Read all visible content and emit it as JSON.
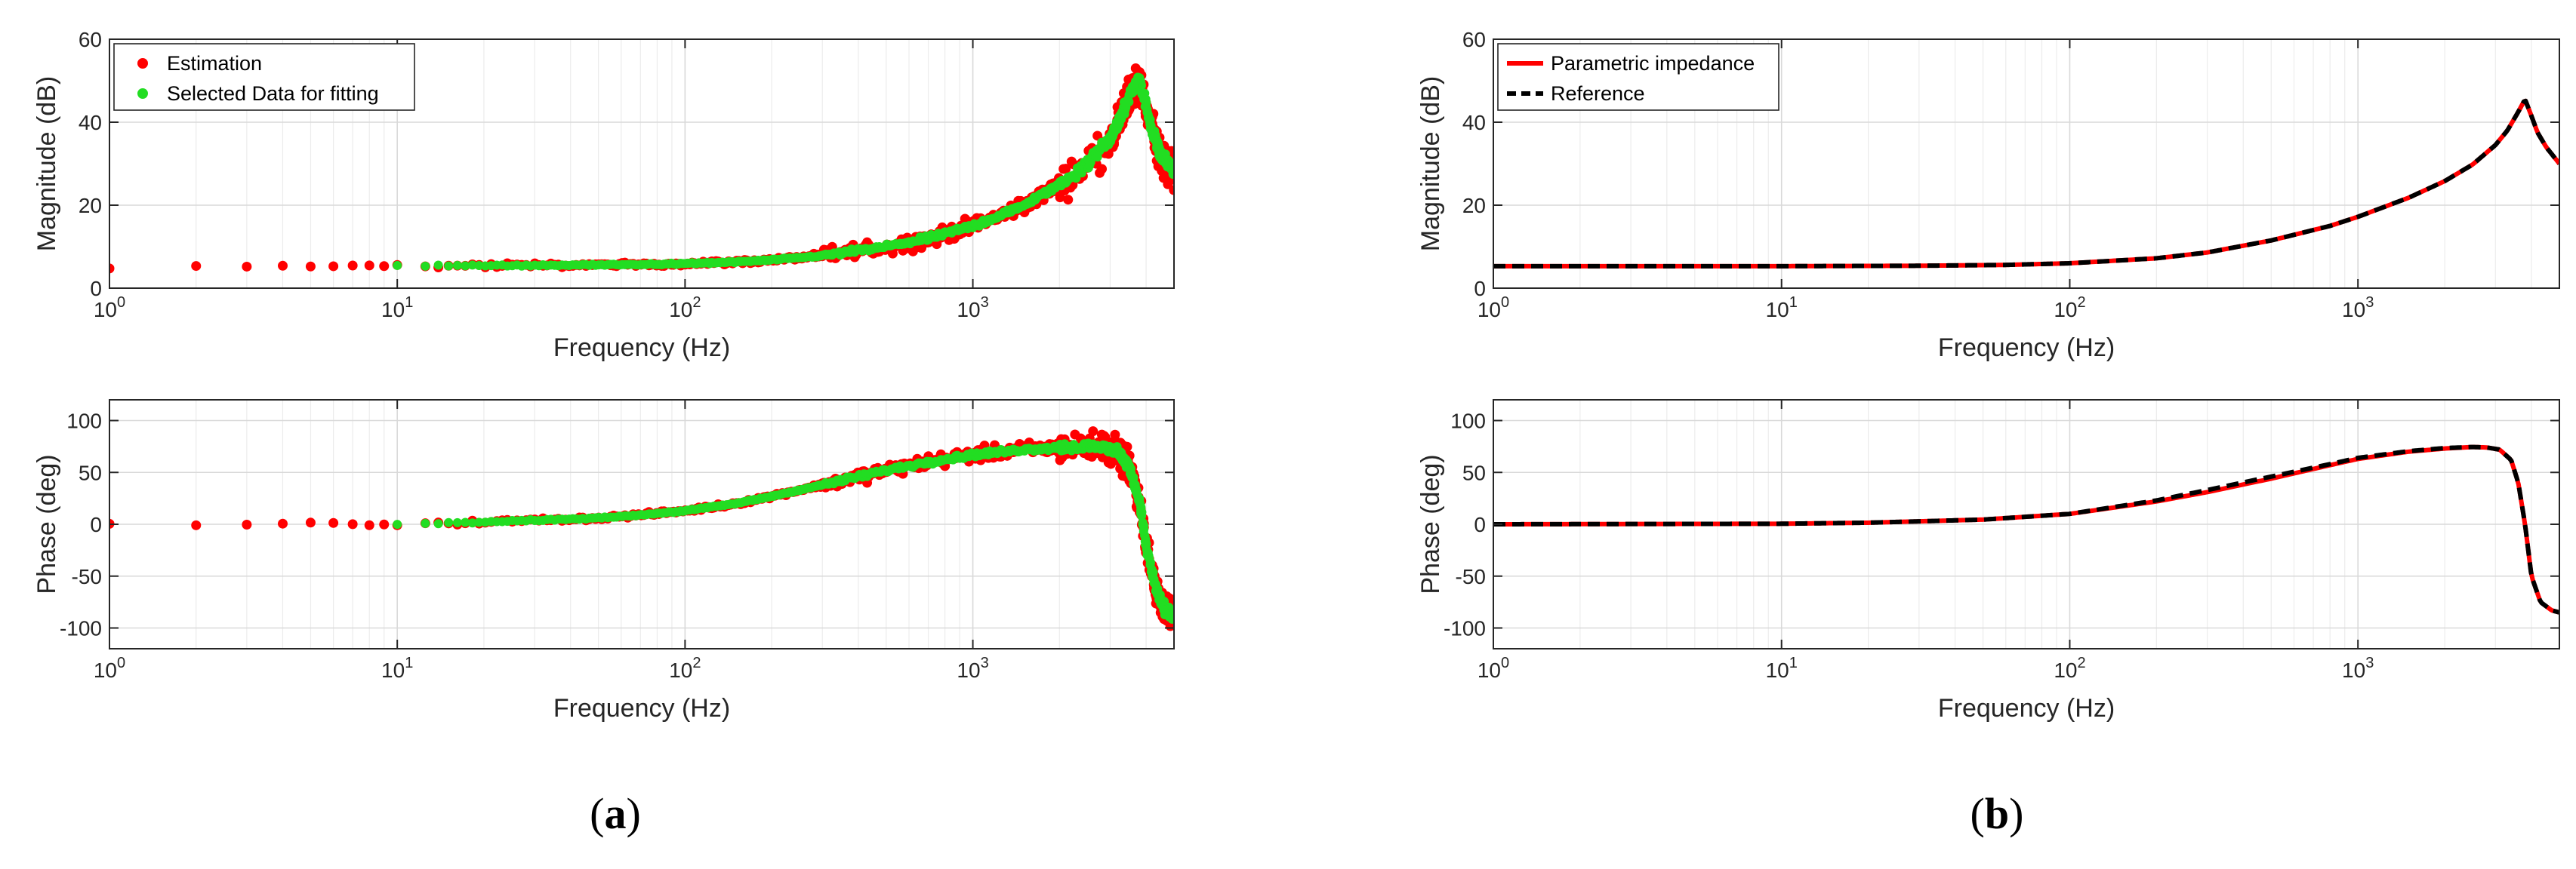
{
  "chart_data": [
    {
      "panel": "a",
      "type": "scatter",
      "subplot": "magnitude",
      "xscale": "log",
      "xlim": [
        1,
        5000
      ],
      "ylim": [
        0,
        60
      ],
      "xlabel": "Frequency (Hz)",
      "ylabel": "Magnitude (dB)",
      "xticks": [
        1,
        10,
        100,
        1000
      ],
      "xtick_labels": [
        [
          "10",
          "0"
        ],
        [
          "10",
          "1"
        ],
        [
          "10",
          "2"
        ],
        [
          "10",
          "3"
        ]
      ],
      "yticks": [
        0,
        20,
        40,
        60
      ],
      "ytick_labels": [
        "0",
        "20",
        "40",
        "60"
      ],
      "grid": true,
      "legend_position": "top-left",
      "series": [
        {
          "name": "Estimation",
          "color": "#ff0000",
          "marker": "dot",
          "noise": 3.5,
          "x": [
            1,
            2,
            3,
            4,
            5,
            6,
            7,
            8,
            9,
            10,
            20,
            30,
            50,
            70,
            100,
            150,
            200,
            300,
            500,
            700,
            1000,
            1300,
            1600,
            2000,
            2500,
            3000,
            3300,
            3600,
            3800,
            4000,
            4200,
            4500,
            4800,
            5000
          ],
          "y": [
            5.3,
            5.3,
            5.3,
            5.3,
            5.3,
            5.3,
            5.3,
            5.3,
            5.3,
            5.4,
            5.4,
            5.5,
            5.6,
            5.7,
            5.9,
            6.3,
            6.8,
            7.8,
            10,
            12,
            15,
            18,
            21,
            25,
            30,
            36,
            42,
            48,
            50,
            44,
            38,
            32,
            29,
            27
          ]
        },
        {
          "name": "Selected Data for fitting",
          "color": "#22dd22",
          "marker": "dot",
          "noise": 1.2,
          "x": [
            10,
            20,
            30,
            50,
            70,
            100,
            150,
            200,
            300,
            500,
            700,
            1000,
            1300,
            1600,
            2000,
            2500,
            3000,
            3300,
            3600,
            3800,
            4000,
            4200,
            4500,
            4800,
            5000
          ],
          "y": [
            5.4,
            5.4,
            5.5,
            5.6,
            5.7,
            5.9,
            6.3,
            6.8,
            7.8,
            10,
            12,
            15,
            18,
            21,
            25,
            30,
            36,
            42,
            48,
            50,
            44,
            38,
            32,
            30,
            28
          ]
        }
      ]
    },
    {
      "panel": "a",
      "type": "scatter",
      "subplot": "phase",
      "xscale": "log",
      "xlim": [
        1,
        5000
      ],
      "ylim": [
        -120,
        120
      ],
      "xlabel": "Frequency (Hz)",
      "ylabel": "Phase (deg)",
      "xticks": [
        1,
        10,
        100,
        1000
      ],
      "xtick_labels": [
        [
          "10",
          "0"
        ],
        [
          "10",
          "1"
        ],
        [
          "10",
          "2"
        ],
        [
          "10",
          "3"
        ]
      ],
      "yticks": [
        -100,
        -50,
        0,
        50,
        100
      ],
      "ytick_labels": [
        "-100",
        "-50",
        "0",
        "50",
        "100"
      ],
      "grid": true,
      "series": [
        {
          "name": "Estimation",
          "color": "#ff0000",
          "marker": "dot",
          "noise": 12,
          "x": [
            1,
            2,
            3,
            4,
            5,
            6,
            7,
            8,
            9,
            10,
            20,
            30,
            50,
            70,
            100,
            150,
            200,
            300,
            500,
            700,
            1000,
            1500,
            2000,
            2500,
            2800,
            3200,
            3500,
            3800,
            4000,
            4300,
            4600,
            5000
          ],
          "y": [
            0,
            0,
            0,
            0,
            0,
            0,
            0,
            0,
            0,
            0.5,
            2,
            4,
            6,
            9,
            13,
            20,
            27,
            38,
            52,
            60,
            67,
            72,
            74,
            75,
            74,
            70,
            55,
            20,
            -20,
            -60,
            -80,
            -88
          ]
        },
        {
          "name": "Selected Data for fitting",
          "color": "#22dd22",
          "marker": "dot",
          "noise": 4,
          "x": [
            10,
            20,
            30,
            50,
            70,
            100,
            150,
            200,
            300,
            500,
            700,
            1000,
            1500,
            2000,
            2500,
            2800,
            3200,
            3500,
            3800,
            4000,
            4300,
            4600,
            5000
          ],
          "y": [
            0.5,
            2,
            4,
            6,
            9,
            13,
            20,
            27,
            38,
            52,
            60,
            67,
            72,
            74,
            75,
            74,
            70,
            55,
            20,
            -20,
            -60,
            -80,
            -88
          ]
        }
      ]
    },
    {
      "panel": "b",
      "type": "line",
      "subplot": "magnitude",
      "xscale": "log",
      "xlim": [
        1,
        5000
      ],
      "ylim": [
        0,
        60
      ],
      "xlabel": "Frequency (Hz)",
      "ylabel": "Magnitude (dB)",
      "xticks": [
        1,
        10,
        100,
        1000
      ],
      "xtick_labels": [
        [
          "10",
          "0"
        ],
        [
          "10",
          "1"
        ],
        [
          "10",
          "2"
        ],
        [
          "10",
          "3"
        ]
      ],
      "yticks": [
        0,
        20,
        40,
        60
      ],
      "ytick_labels": [
        "0",
        "20",
        "40",
        "60"
      ],
      "grid": true,
      "legend_position": "top-left",
      "series": [
        {
          "name": "Parametric impedance",
          "color": "#ff0000",
          "style": "solid",
          "x": [
            1,
            10,
            30,
            60,
            100,
            200,
            300,
            500,
            800,
            1000,
            1500,
            2000,
            2500,
            3000,
            3300,
            3600,
            3800,
            4000,
            4200,
            4500,
            5000
          ],
          "y": [
            5.3,
            5.3,
            5.4,
            5.6,
            6.0,
            7.2,
            8.6,
            11.5,
            15.0,
            17.2,
            21.8,
            25.8,
            29.8,
            34.5,
            38,
            42.5,
            45.5,
            41.5,
            37.5,
            34.0,
            30.0
          ]
        },
        {
          "name": "Reference",
          "color": "#000000",
          "style": "dashed",
          "x": [
            1,
            10,
            30,
            60,
            100,
            200,
            300,
            500,
            800,
            1000,
            1500,
            2000,
            2500,
            3000,
            3300,
            3600,
            3800,
            4000,
            4200,
            4500,
            5000
          ],
          "y": [
            5.3,
            5.3,
            5.4,
            5.6,
            6.0,
            7.2,
            8.6,
            11.5,
            15.0,
            17.2,
            21.8,
            25.8,
            29.8,
            34.5,
            38,
            42.5,
            45.5,
            41.5,
            37.5,
            34.0,
            30.0
          ]
        }
      ]
    },
    {
      "panel": "b",
      "type": "line",
      "subplot": "phase",
      "xscale": "log",
      "xlim": [
        1,
        5000
      ],
      "ylim": [
        -120,
        120
      ],
      "xlabel": "Frequency (Hz)",
      "ylabel": "Phase (deg)",
      "xticks": [
        1,
        10,
        100,
        1000
      ],
      "xtick_labels": [
        [
          "10",
          "0"
        ],
        [
          "10",
          "1"
        ],
        [
          "10",
          "2"
        ],
        [
          "10",
          "3"
        ]
      ],
      "yticks": [
        -100,
        -50,
        0,
        50,
        100
      ],
      "ytick_labels": [
        "-100",
        "-50",
        "0",
        "50",
        "100"
      ],
      "grid": true,
      "series": [
        {
          "name": "Parametric impedance",
          "color": "#ff0000",
          "style": "solid",
          "x": [
            1,
            10,
            20,
            50,
            100,
            200,
            300,
            500,
            800,
            1000,
            1500,
            2000,
            2500,
            2800,
            3100,
            3400,
            3600,
            3800,
            4000,
            4300,
            4700,
            5000
          ],
          "y": [
            0,
            0.5,
            1.5,
            4.5,
            10,
            22,
            31,
            44,
            57,
            63,
            70,
            73,
            74.5,
            74,
            72,
            62,
            40,
            0,
            -50,
            -75,
            -83,
            -85
          ]
        },
        {
          "name": "Reference",
          "color": "#000000",
          "style": "dashed",
          "x": [
            1,
            10,
            20,
            50,
            100,
            200,
            300,
            500,
            800,
            1000,
            1500,
            2000,
            2500,
            2800,
            3100,
            3400,
            3600,
            3800,
            4000,
            4300,
            4700,
            5000
          ],
          "y": [
            0,
            0.5,
            1.5,
            4.5,
            10,
            23,
            33,
            46,
            58,
            64,
            70.5,
            73.5,
            74.5,
            74,
            72,
            62,
            40,
            0,
            -50,
            -75,
            -83,
            -85
          ]
        }
      ]
    }
  ],
  "captions": {
    "a": {
      "open": "(",
      "letter": "a",
      "close": ")"
    },
    "b": {
      "open": "(",
      "letter": "b",
      "close": ")"
    }
  }
}
